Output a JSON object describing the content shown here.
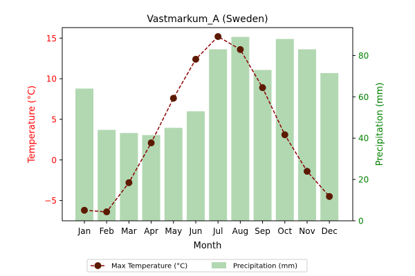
{
  "chart_data": {
    "type": "bar+line",
    "title": "Vastmarkum_A (Sweden)",
    "xlabel": "Month",
    "ylabel_left": "Temperature (°C)",
    "ylabel_right": "Precipitation (mm)",
    "categories": [
      "Jan",
      "Feb",
      "Mar",
      "Apr",
      "May",
      "Jun",
      "Jul",
      "Aug",
      "Sep",
      "Oct",
      "Nov",
      "Dec"
    ],
    "ylim_left": [
      -7.5,
      16.3
    ],
    "ylim_right": [
      0,
      93.5
    ],
    "yticks_left": [
      -5,
      0,
      5,
      10,
      15
    ],
    "yticks_right": [
      0,
      20,
      40,
      60,
      80
    ],
    "series": [
      {
        "name": "Max Temperature (°C)",
        "kind": "line",
        "axis": "left",
        "color": "#8b0000",
        "values": [
          -6.2,
          -6.4,
          -2.8,
          2.1,
          7.6,
          12.4,
          15.2,
          13.6,
          8.9,
          3.1,
          -1.4,
          -4.5
        ]
      },
      {
        "name": "Precipitation (mm)",
        "kind": "bar",
        "axis": "right",
        "color": "#b2d8b2",
        "values": [
          64,
          44,
          42.5,
          41.5,
          45,
          53,
          83,
          89,
          73,
          88,
          83,
          71.5
        ]
      }
    ],
    "legend_position": "bottom-center",
    "left_axis_color": "#ff0000",
    "right_axis_color": "#008000"
  }
}
